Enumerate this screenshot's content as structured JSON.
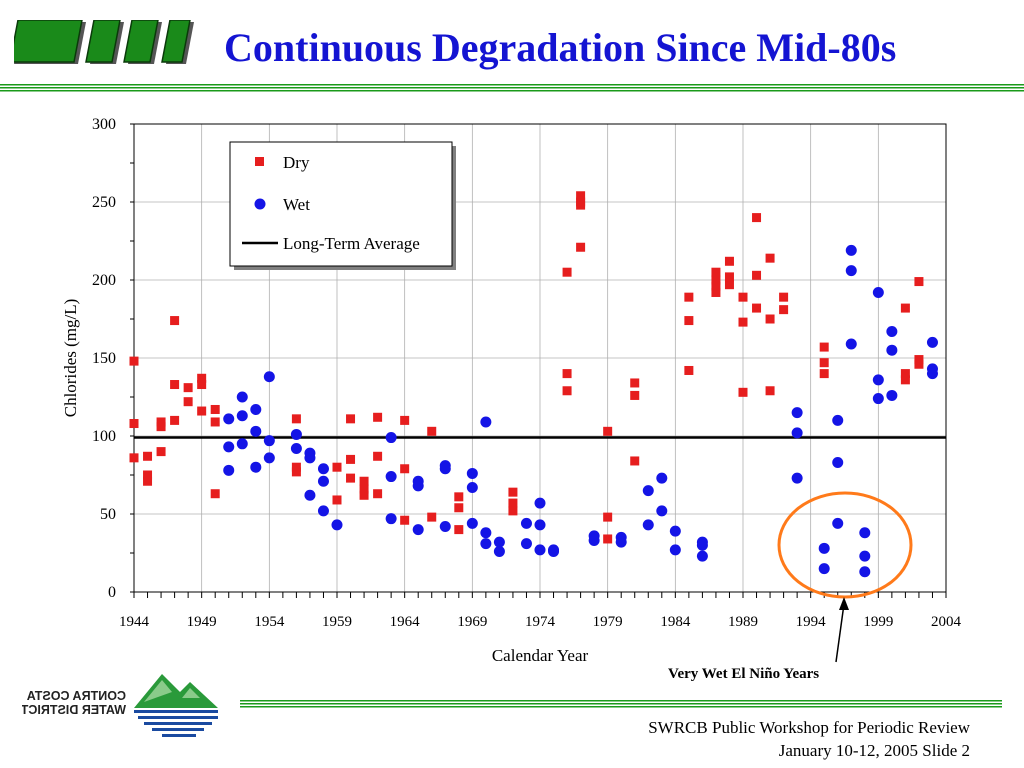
{
  "slide": {
    "title": "Continuous Degradation Since Mid-80s",
    "footer_line1": "SWRCB Public Workshop for Periodic Review",
    "footer_line2": "January 10-12, 2005  Slide 2",
    "annotation": "Very Wet El Niño Years",
    "logo_text_line1": "CONTRA COSTA",
    "logo_text_line2": "WATER DISTRICT"
  },
  "colors": {
    "title": "#1414d2",
    "dry": "#e61e1e",
    "wet": "#1414e6",
    "circle": "#ff7a1a",
    "rule_green": "#1a9a1a"
  },
  "chart_data": {
    "type": "scatter",
    "title": "",
    "xlabel": "Calendar Year",
    "ylabel": "Chlorides (mg/L)",
    "xlim": [
      1944,
      2004
    ],
    "ylim": [
      0,
      300
    ],
    "x_ticks": [
      "1944",
      "1949",
      "1954",
      "1959",
      "1964",
      "1969",
      "1974",
      "1979",
      "1984",
      "1989",
      "1994",
      "1999",
      "2004"
    ],
    "y_ticks": [
      "0",
      "50",
      "100",
      "150",
      "200",
      "250",
      "300"
    ],
    "grid": true,
    "legend_position": "top-left",
    "long_term_average": 99,
    "legend": [
      {
        "label": "Dry",
        "marker": "square"
      },
      {
        "label": "Wet",
        "marker": "circle"
      },
      {
        "label": "Long-Term Average",
        "marker": "line"
      }
    ],
    "series": [
      {
        "name": "Dry",
        "marker": "square",
        "points": [
          [
            1944,
            148
          ],
          [
            1944,
            108
          ],
          [
            1944,
            86
          ],
          [
            1945,
            87
          ],
          [
            1945,
            75
          ],
          [
            1945,
            71
          ],
          [
            1946,
            109
          ],
          [
            1946,
            106
          ],
          [
            1946,
            90
          ],
          [
            1947,
            174
          ],
          [
            1947,
            133
          ],
          [
            1947,
            110
          ],
          [
            1948,
            131
          ],
          [
            1948,
            122
          ],
          [
            1949,
            137
          ],
          [
            1949,
            133
          ],
          [
            1949,
            116
          ],
          [
            1950,
            117
          ],
          [
            1950,
            109
          ],
          [
            1950,
            63
          ],
          [
            1956,
            111
          ],
          [
            1956,
            80
          ],
          [
            1956,
            77
          ],
          [
            1959,
            80
          ],
          [
            1959,
            59
          ],
          [
            1960,
            111
          ],
          [
            1960,
            85
          ],
          [
            1960,
            73
          ],
          [
            1961,
            71
          ],
          [
            1961,
            66
          ],
          [
            1961,
            62
          ],
          [
            1962,
            112
          ],
          [
            1962,
            87
          ],
          [
            1962,
            63
          ],
          [
            1964,
            110
          ],
          [
            1964,
            79
          ],
          [
            1964,
            46
          ],
          [
            1966,
            103
          ],
          [
            1966,
            48
          ],
          [
            1968,
            61
          ],
          [
            1968,
            54
          ],
          [
            1968,
            40
          ],
          [
            1972,
            64
          ],
          [
            1972,
            57
          ],
          [
            1972,
            52
          ],
          [
            1976,
            205
          ],
          [
            1976,
            140
          ],
          [
            1976,
            129
          ],
          [
            1977,
            254
          ],
          [
            1977,
            250
          ],
          [
            1977,
            248
          ],
          [
            1977,
            221
          ],
          [
            1979,
            103
          ],
          [
            1979,
            48
          ],
          [
            1979,
            34
          ],
          [
            1981,
            134
          ],
          [
            1981,
            126
          ],
          [
            1981,
            84
          ],
          [
            1985,
            189
          ],
          [
            1985,
            174
          ],
          [
            1985,
            142
          ],
          [
            1987,
            205
          ],
          [
            1987,
            200
          ],
          [
            1987,
            196
          ],
          [
            1987,
            192
          ],
          [
            1988,
            212
          ],
          [
            1988,
            202
          ],
          [
            1988,
            197
          ],
          [
            1989,
            189
          ],
          [
            1989,
            173
          ],
          [
            1989,
            128
          ],
          [
            1990,
            240
          ],
          [
            1990,
            203
          ],
          [
            1990,
            182
          ],
          [
            1991,
            214
          ],
          [
            1991,
            175
          ],
          [
            1991,
            129
          ],
          [
            1992,
            189
          ],
          [
            1992,
            181
          ],
          [
            1995,
            157
          ],
          [
            1995,
            147
          ],
          [
            1995,
            140
          ],
          [
            2001,
            182
          ],
          [
            2001,
            140
          ],
          [
            2001,
            136
          ],
          [
            2002,
            199
          ],
          [
            2002,
            149
          ],
          [
            2002,
            146
          ]
        ]
      },
      {
        "name": "Wet",
        "marker": "circle",
        "points": [
          [
            1951,
            111
          ],
          [
            1951,
            93
          ],
          [
            1951,
            78
          ],
          [
            1952,
            125
          ],
          [
            1952,
            113
          ],
          [
            1952,
            95
          ],
          [
            1953,
            117
          ],
          [
            1953,
            103
          ],
          [
            1953,
            80
          ],
          [
            1954,
            138
          ],
          [
            1954,
            97
          ],
          [
            1954,
            86
          ],
          [
            1956,
            101
          ],
          [
            1956,
            92
          ],
          [
            1957,
            89
          ],
          [
            1957,
            86
          ],
          [
            1957,
            62
          ],
          [
            1958,
            79
          ],
          [
            1958,
            71
          ],
          [
            1958,
            52
          ],
          [
            1959,
            43
          ],
          [
            1963,
            99
          ],
          [
            1963,
            74
          ],
          [
            1963,
            47
          ],
          [
            1965,
            71
          ],
          [
            1965,
            68
          ],
          [
            1965,
            40
          ],
          [
            1967,
            81
          ],
          [
            1967,
            79
          ],
          [
            1967,
            42
          ],
          [
            1969,
            76
          ],
          [
            1969,
            67
          ],
          [
            1969,
            44
          ],
          [
            1970,
            109
          ],
          [
            1970,
            38
          ],
          [
            1970,
            31
          ],
          [
            1971,
            32
          ],
          [
            1971,
            26
          ],
          [
            1973,
            44
          ],
          [
            1973,
            31
          ],
          [
            1974,
            57
          ],
          [
            1974,
            43
          ],
          [
            1974,
            27
          ],
          [
            1975,
            27
          ],
          [
            1975,
            26
          ],
          [
            1978,
            36
          ],
          [
            1978,
            33
          ],
          [
            1980,
            35
          ],
          [
            1980,
            32
          ],
          [
            1982,
            65
          ],
          [
            1982,
            43
          ],
          [
            1983,
            73
          ],
          [
            1983,
            52
          ],
          [
            1984,
            39
          ],
          [
            1984,
            27
          ],
          [
            1986,
            32
          ],
          [
            1986,
            30
          ],
          [
            1986,
            23
          ],
          [
            1993,
            115
          ],
          [
            1993,
            102
          ],
          [
            1993,
            73
          ],
          [
            1995,
            28
          ],
          [
            1995,
            15
          ],
          [
            1996,
            110
          ],
          [
            1996,
            83
          ],
          [
            1996,
            44
          ],
          [
            1997,
            219
          ],
          [
            1997,
            206
          ],
          [
            1997,
            159
          ],
          [
            1998,
            38
          ],
          [
            1998,
            23
          ],
          [
            1998,
            13
          ],
          [
            1999,
            192
          ],
          [
            1999,
            136
          ],
          [
            1999,
            124
          ],
          [
            2000,
            167
          ],
          [
            2000,
            155
          ],
          [
            2000,
            126
          ],
          [
            2003,
            160
          ],
          [
            2003,
            143
          ],
          [
            2003,
            140
          ]
        ]
      }
    ]
  }
}
